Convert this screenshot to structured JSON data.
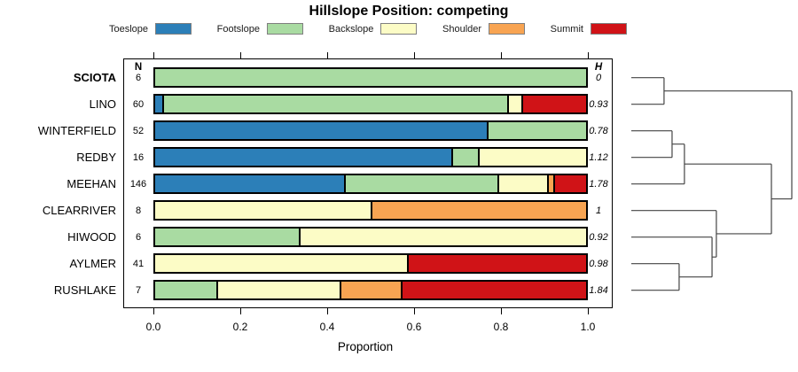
{
  "chart_data": {
    "type": "bar",
    "orientation": "horizontal-stacked",
    "title": "Hillslope Position: competing",
    "xlabel": "Proportion",
    "xlim": [
      0,
      1
    ],
    "xticks": [
      0.0,
      0.2,
      0.4,
      0.6,
      0.8,
      1.0
    ],
    "xtick_labels": [
      "0.0",
      "0.2",
      "0.4",
      "0.6",
      "0.8",
      "1.0"
    ],
    "grid": false,
    "legend_position": "top",
    "categories": [
      "Toeslope",
      "Footslope",
      "Backslope",
      "Shoulder",
      "Summit"
    ],
    "colors": {
      "Toeslope": "#2C7FB8",
      "Footslope": "#A9DBA2",
      "Backslope": "#FCFCC6",
      "Shoulder": "#F8A452",
      "Summit": "#D01317"
    },
    "bar_border_color": "#000000",
    "legend_swatch_border_color": "#7F7F7F",
    "n_header": "N",
    "h_header": "H",
    "rows": [
      {
        "label": "SCIOTA",
        "bold": true,
        "n": 6,
        "h": "0",
        "segments": [
          {
            "category": "Footslope",
            "value": 1.0
          }
        ]
      },
      {
        "label": "LINO",
        "bold": false,
        "n": 60,
        "h": "0.93",
        "segments": [
          {
            "category": "Toeslope",
            "value": 0.017
          },
          {
            "category": "Footslope",
            "value": 0.8
          },
          {
            "category": "Backslope",
            "value": 0.033
          },
          {
            "category": "Summit",
            "value": 0.15
          }
        ]
      },
      {
        "label": "WINTERFIELD",
        "bold": false,
        "n": 52,
        "h": "0.78",
        "segments": [
          {
            "category": "Toeslope",
            "value": 0.769
          },
          {
            "category": "Footslope",
            "value": 0.231
          }
        ]
      },
      {
        "label": "REDBY",
        "bold": false,
        "n": 16,
        "h": "1.12",
        "segments": [
          {
            "category": "Toeslope",
            "value": 0.688
          },
          {
            "category": "Footslope",
            "value": 0.062
          },
          {
            "category": "Backslope",
            "value": 0.25
          }
        ]
      },
      {
        "label": "MEEHAN",
        "bold": false,
        "n": 146,
        "h": "1.78",
        "segments": [
          {
            "category": "Toeslope",
            "value": 0.438
          },
          {
            "category": "Footslope",
            "value": 0.356
          },
          {
            "category": "Backslope",
            "value": 0.116
          },
          {
            "category": "Shoulder",
            "value": 0.014
          },
          {
            "category": "Summit",
            "value": 0.076
          }
        ]
      },
      {
        "label": "CLEARRIVER",
        "bold": false,
        "n": 8,
        "h": "1",
        "segments": [
          {
            "category": "Backslope",
            "value": 0.5
          },
          {
            "category": "Shoulder",
            "value": 0.5
          }
        ]
      },
      {
        "label": "HIWOOD",
        "bold": false,
        "n": 6,
        "h": "0.92",
        "segments": [
          {
            "category": "Footslope",
            "value": 0.333
          },
          {
            "category": "Backslope",
            "value": 0.667
          }
        ]
      },
      {
        "label": "AYLMER",
        "bold": false,
        "n": 41,
        "h": "0.98",
        "segments": [
          {
            "category": "Backslope",
            "value": 0.585
          },
          {
            "category": "Summit",
            "value": 0.415
          }
        ]
      },
      {
        "label": "RUSHLAKE",
        "bold": false,
        "n": 7,
        "h": "1.84",
        "segments": [
          {
            "category": "Footslope",
            "value": 0.143
          },
          {
            "category": "Backslope",
            "value": 0.286
          },
          {
            "category": "Shoulder",
            "value": 0.142
          },
          {
            "category": "Summit",
            "value": 0.429
          }
        ]
      }
    ],
    "dendrogram": {
      "stroke_color": "#444444",
      "tree": {
        "height": 1.0,
        "children": [
          {
            "height": 0.204,
            "children": [
              {
                "leaf": "SCIOTA"
              },
              {
                "leaf": "LINO"
              }
            ]
          },
          {
            "height": 0.873,
            "children": [
              {
                "height": 0.331,
                "children": [
                  {
                    "height": 0.254,
                    "children": [
                      {
                        "leaf": "WINTERFIELD"
                      },
                      {
                        "leaf": "REDBY"
                      }
                    ]
                  },
                  {
                    "leaf": "MEEHAN"
                  }
                ]
              },
              {
                "height": 0.53,
                "children": [
                  {
                    "leaf": "CLEARRIVER"
                  },
                  {
                    "height": 0.503,
                    "children": [
                      {
                        "leaf": "HIWOOD"
                      },
                      {
                        "height": 0.298,
                        "children": [
                          {
                            "leaf": "AYLMER"
                          },
                          {
                            "leaf": "RUSHLAKE"
                          }
                        ]
                      }
                    ]
                  }
                ]
              }
            ]
          }
        ]
      }
    }
  }
}
